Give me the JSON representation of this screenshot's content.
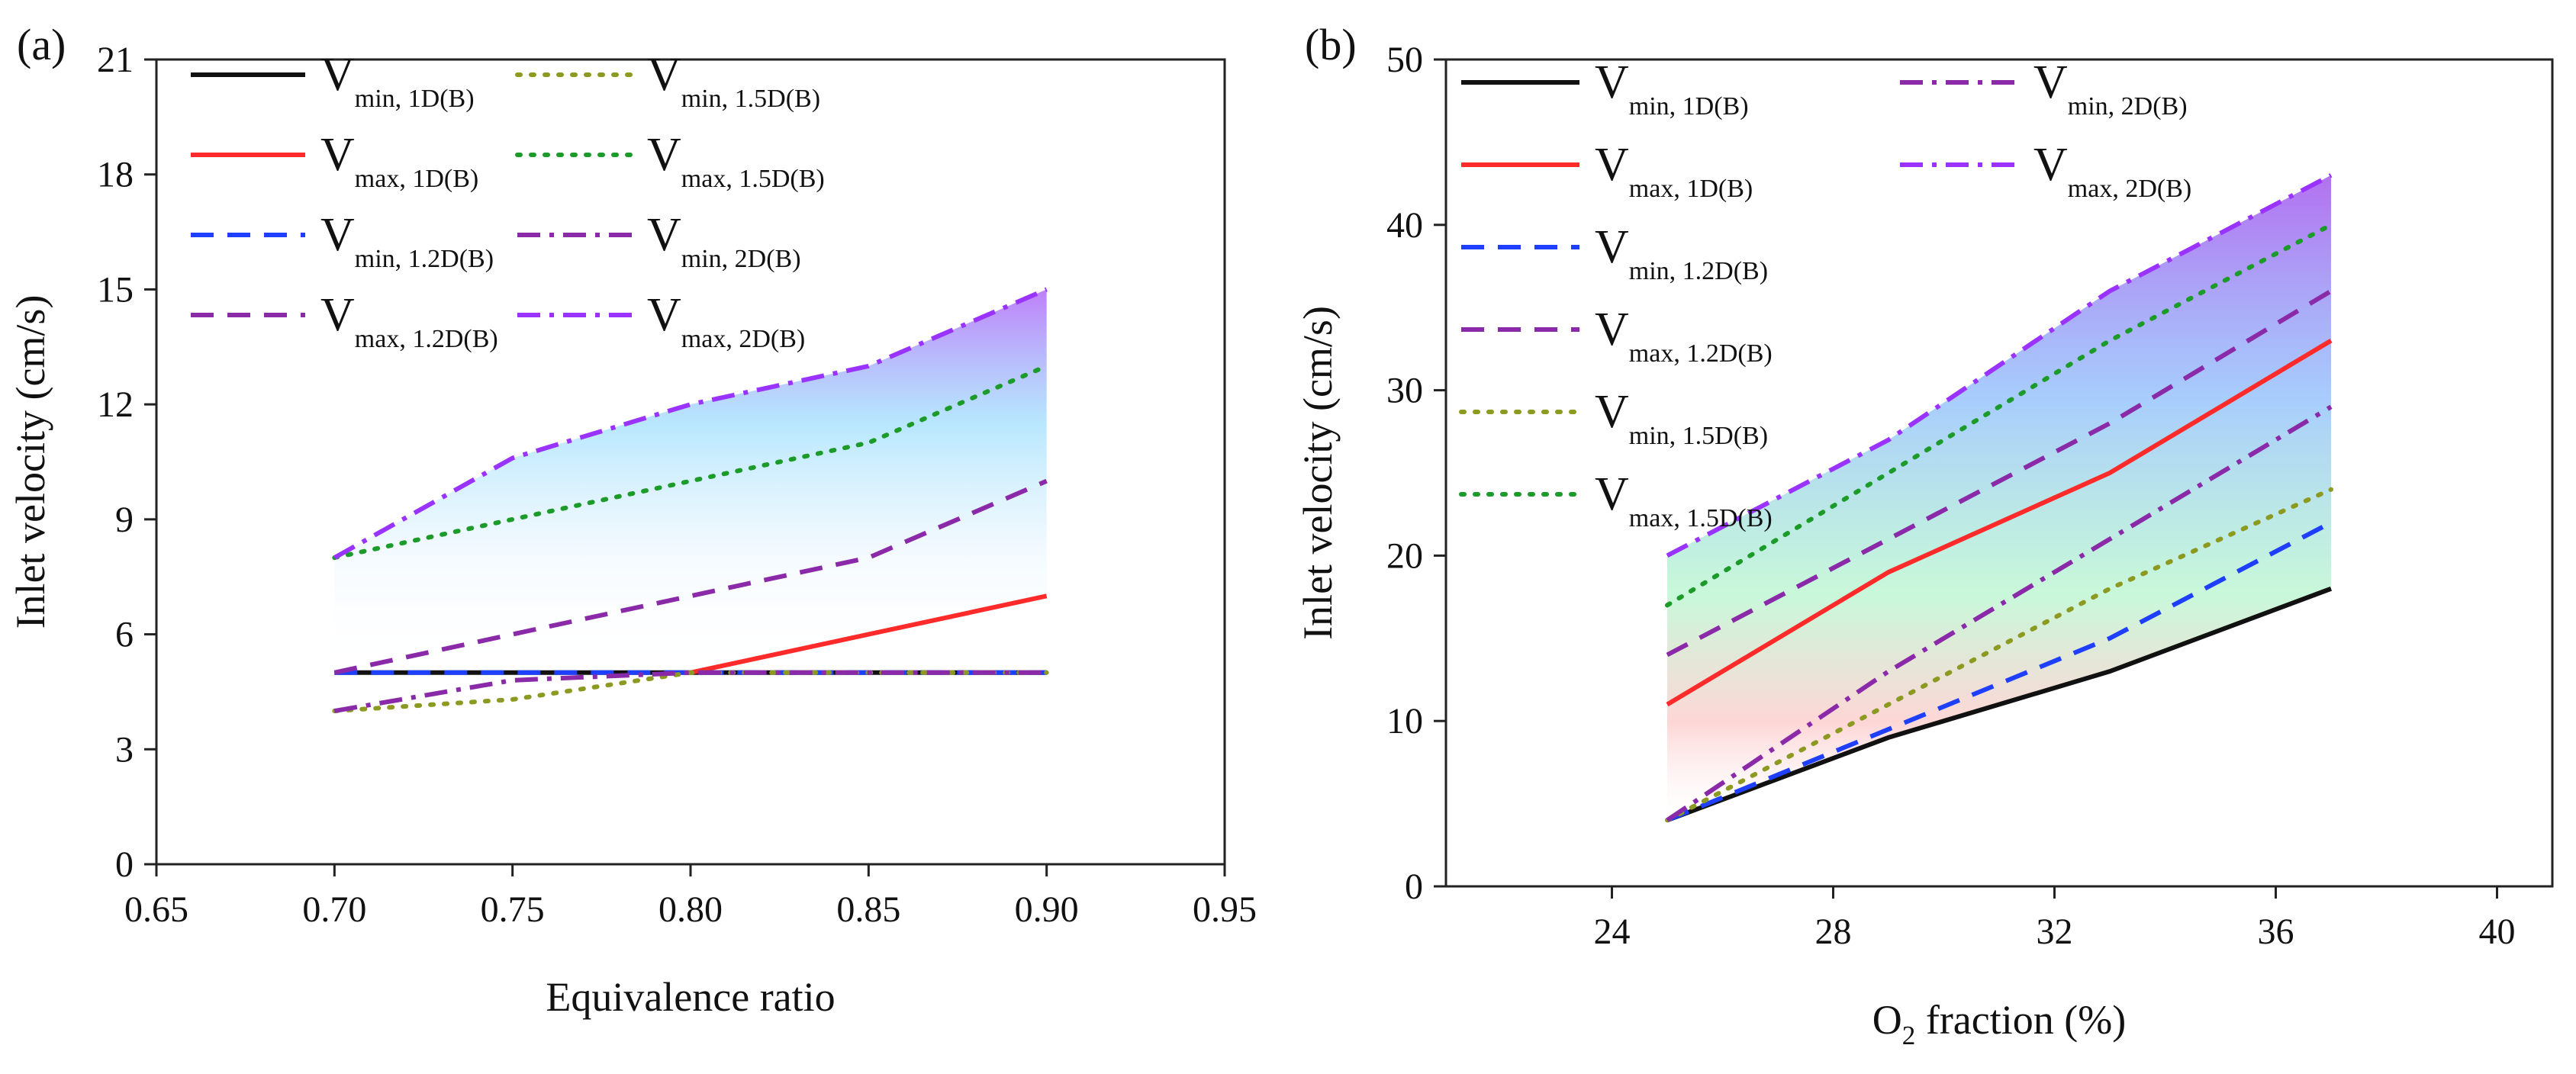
{
  "colors": {
    "black": "#111111",
    "red": "#ff2a2a",
    "blue": "#1f3fff",
    "purple": "#8a2aa8",
    "olive": "#8c9a22",
    "green": "#1c9a2a",
    "violet": "#9a33ff"
  },
  "chart_data": [
    {
      "type": "line",
      "panel_label": "(a)",
      "xlabel": "Equivalence ratio",
      "ylabel": "Inlet velocity (cm/s)",
      "xlim": [
        0.65,
        0.95
      ],
      "ylim": [
        0,
        21
      ],
      "xticks": [
        "0.65",
        "0.70",
        "0.75",
        "0.80",
        "0.85",
        "0.90",
        "0.95"
      ],
      "yticks": [
        "0",
        "3",
        "6",
        "9",
        "12",
        "15",
        "18",
        "21"
      ],
      "grid": false,
      "legend_placement": "top-left, two columns",
      "series": [
        {
          "v": "V",
          "sub": "min, 1D(B)",
          "color": "black",
          "dash": "solid",
          "x": [
            0.7,
            0.75,
            0.8,
            0.85,
            0.9
          ],
          "y": [
            5,
            5,
            5,
            5,
            5
          ]
        },
        {
          "v": "V",
          "sub": "max, 1D(B)",
          "color": "red",
          "dash": "solid",
          "x": [
            0.8,
            0.85,
            0.9
          ],
          "y": [
            5,
            6,
            7
          ]
        },
        {
          "v": "V",
          "sub": "min, 1.2D(B)",
          "color": "blue",
          "dash": "dash",
          "x": [
            0.7,
            0.75,
            0.8,
            0.85,
            0.9
          ],
          "y": [
            5,
            5,
            5,
            5,
            5
          ]
        },
        {
          "v": "V",
          "sub": "max, 1.2D(B)",
          "color": "purple",
          "dash": "dash",
          "x": [
            0.7,
            0.75,
            0.8,
            0.85,
            0.9
          ],
          "y": [
            5,
            6,
            7,
            8,
            10
          ]
        },
        {
          "v": "V",
          "sub": "min, 1.5D(B)",
          "color": "olive",
          "dash": "dot",
          "x": [
            0.7,
            0.75,
            0.8,
            0.85,
            0.9
          ],
          "y": [
            4,
            4.3,
            5,
            5,
            5
          ]
        },
        {
          "v": "V",
          "sub": "max, 1.5D(B)",
          "color": "green",
          "dash": "dot",
          "x": [
            0.7,
            0.75,
            0.8,
            0.85,
            0.9
          ],
          "y": [
            8,
            9,
            10,
            11,
            13
          ]
        },
        {
          "v": "V",
          "sub": "min, 2D(B)",
          "color": "purple",
          "dash": "dashdot",
          "x": [
            0.7,
            0.75,
            0.8,
            0.85,
            0.9
          ],
          "y": [
            4,
            4.8,
            5,
            5,
            5
          ]
        },
        {
          "v": "V",
          "sub": "max, 2D(B)",
          "color": "violet",
          "dash": "dashdot",
          "x": [
            0.7,
            0.75,
            0.8,
            0.85,
            0.9
          ],
          "y": [
            8,
            10.6,
            12,
            13,
            15
          ]
        }
      ]
    },
    {
      "type": "line",
      "panel_label": "(b)",
      "xlabel_main": "O",
      "xlabel_sub": "2",
      "xlabel_rest": " fraction (%)",
      "ylabel": "Inlet velocity (cm/s)",
      "xlim": [
        21,
        41
      ],
      "ylim": [
        0,
        50
      ],
      "xticks": [
        "24",
        "28",
        "32",
        "36",
        "40"
      ],
      "yticks": [
        "0",
        "10",
        "20",
        "30",
        "40",
        "50"
      ],
      "grid": false,
      "legend_placement": "top-left, two columns",
      "series": [
        {
          "v": "V",
          "sub": "min, 1D(B)",
          "color": "black",
          "dash": "solid",
          "x": [
            25,
            29,
            33,
            37
          ],
          "y": [
            4,
            9,
            13,
            18
          ]
        },
        {
          "v": "V",
          "sub": "max, 1D(B)",
          "color": "red",
          "dash": "solid",
          "x": [
            25,
            29,
            33,
            37
          ],
          "y": [
            11,
            19,
            25,
            33
          ]
        },
        {
          "v": "V",
          "sub": "min, 1.2D(B)",
          "color": "blue",
          "dash": "dash",
          "x": [
            25,
            29,
            33,
            37
          ],
          "y": [
            4,
            9.5,
            15,
            22
          ]
        },
        {
          "v": "V",
          "sub": "max, 1.2D(B)",
          "color": "purple",
          "dash": "dash",
          "x": [
            25,
            29,
            33,
            37
          ],
          "y": [
            14,
            21,
            28,
            36
          ]
        },
        {
          "v": "V",
          "sub": "min, 1.5D(B)",
          "color": "olive",
          "dash": "dot",
          "x": [
            25,
            29,
            33,
            37
          ],
          "y": [
            4,
            11,
            18,
            24
          ]
        },
        {
          "v": "V",
          "sub": "max, 1.5D(B)",
          "color": "green",
          "dash": "dot",
          "x": [
            25,
            29,
            33,
            37
          ],
          "y": [
            17,
            25,
            33,
            40
          ]
        },
        {
          "v": "V",
          "sub": "min, 2D(B)",
          "color": "purple",
          "dash": "dashdot",
          "x": [
            25,
            29,
            33,
            37
          ],
          "y": [
            4,
            13,
            21,
            29
          ]
        },
        {
          "v": "V",
          "sub": "max, 2D(B)",
          "color": "violet",
          "dash": "dashdot",
          "x": [
            25,
            29,
            33,
            37
          ],
          "y": [
            20,
            27,
            36,
            43
          ]
        }
      ]
    }
  ]
}
